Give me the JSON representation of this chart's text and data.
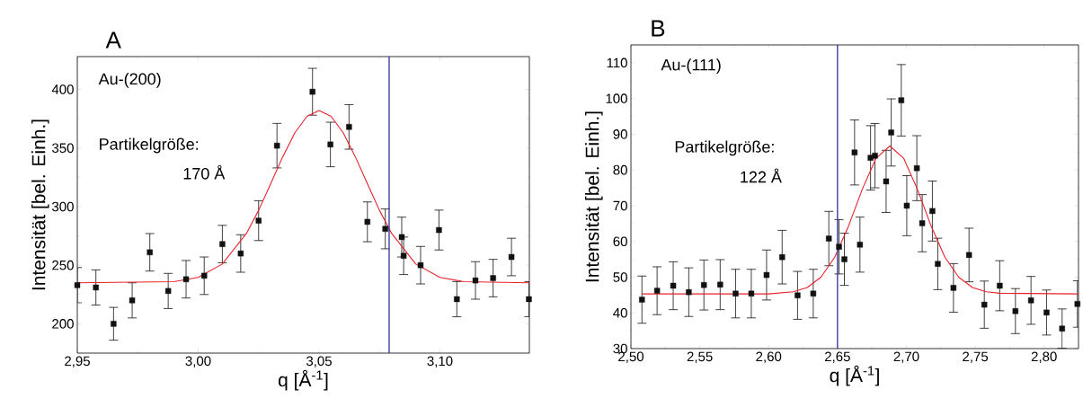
{
  "chart_data": [
    {
      "type": "scatter",
      "title": "A",
      "xlabel": "q [Å$^{-1}$]",
      "ylabel": "Intensität [bel. Einh.]",
      "annotations": [
        "Au-(200)",
        "Partikelgröße:",
        "170 Å"
      ],
      "xlim": [
        2.95,
        3.137
      ],
      "ylim": [
        175,
        428
      ],
      "xticks": [
        {
          "value": 2.95,
          "label": "2,95"
        },
        {
          "value": 3.0,
          "label": "3,00"
        },
        {
          "value": 3.05,
          "label": "3,05"
        },
        {
          "value": 3.1,
          "label": "3,10"
        }
      ],
      "yticks": [
        200,
        250,
        300,
        350,
        400
      ],
      "ref_lines": [
        {
          "axis": "x",
          "value": 3.079,
          "color": "#2b2f9a"
        }
      ],
      "series": [
        {
          "marker": "square",
          "color": "#111111",
          "x": [
            2.95,
            2.9577,
            2.965,
            2.9727,
            2.98,
            2.9876,
            2.995,
            3.0025,
            3.01,
            3.0176,
            3.025,
            3.0326,
            3.0473,
            3.0547,
            3.0624,
            3.07,
            3.0774,
            3.0842,
            3.085,
            3.092,
            3.0996,
            3.107,
            3.1147,
            3.122,
            3.1296,
            3.1368
          ],
          "values": [
            233,
            231,
            200,
            220,
            261,
            228,
            238,
            241,
            268,
            260,
            288,
            352,
            398,
            353,
            368,
            287,
            281,
            274,
            258,
            250,
            280,
            221,
            237,
            239,
            257,
            221
          ],
          "errors": [
            15,
            15,
            14,
            15,
            16,
            15,
            16,
            16,
            16,
            16,
            17,
            19,
            20,
            19,
            19,
            17,
            17,
            17,
            16,
            16,
            17,
            15,
            16,
            16,
            16,
            15
          ]
        },
        {
          "type": "line",
          "marker": "none",
          "color": "#e8202a",
          "x": [
            2.95,
            2.99,
            3.0,
            3.01,
            3.02,
            3.025,
            3.03,
            3.035,
            3.04,
            3.045,
            3.05,
            3.055,
            3.06,
            3.065,
            3.07,
            3.075,
            3.08,
            3.09,
            3.1,
            3.11,
            3.137
          ],
          "values": [
            235,
            236,
            239.6,
            251,
            277.2,
            296.8,
            319.5,
            342.6,
            363,
            377,
            382,
            377,
            363,
            342.6,
            319.5,
            296.8,
            277.2,
            251,
            239.6,
            236,
            235
          ]
        }
      ]
    },
    {
      "type": "scatter",
      "title": "B",
      "xlabel": "q [Å$^{-1}$]",
      "ylabel": "Intensität [bel. Einh.]",
      "annotations": [
        "Au-(111)",
        "Partikelgröße:",
        "122 Å"
      ],
      "xlim": [
        2.5,
        2.825
      ],
      "ylim": [
        30,
        115
      ],
      "xticks": [
        {
          "value": 2.5,
          "label": "2,50"
        },
        {
          "value": 2.55,
          "label": "2,55"
        },
        {
          "value": 2.6,
          "label": "2,60"
        },
        {
          "value": 2.65,
          "label": "2,65"
        },
        {
          "value": 2.7,
          "label": "2,70"
        },
        {
          "value": 2.75,
          "label": "2,75"
        },
        {
          "value": 2.8,
          "label": "2,80"
        }
      ],
      "yticks": [
        30,
        40,
        50,
        60,
        70,
        80,
        90,
        100,
        110
      ],
      "ref_lines": [
        {
          "axis": "x",
          "value": 2.65,
          "color": "#2b2f9a"
        }
      ],
      "series": [
        {
          "marker": "square",
          "color": "#111111",
          "x": [
            2.508,
            2.519,
            2.5307,
            2.542,
            2.553,
            2.5648,
            2.576,
            2.5874,
            2.5985,
            2.6098,
            2.621,
            2.6324,
            2.6437,
            2.6511,
            2.655,
            2.6624,
            2.6663,
            2.674,
            2.6772,
            2.6853,
            2.689,
            2.6963,
            2.7003,
            2.7076,
            2.7115,
            2.7189,
            2.7228,
            2.7342,
            2.7455,
            2.7566,
            2.7678,
            2.7792,
            2.7905,
            2.8018,
            2.8131,
            2.8242
          ],
          "values": [
            43.7,
            46.2,
            47.6,
            45.8,
            47.8,
            47.9,
            45.4,
            45.4,
            50.6,
            55.6,
            44.9,
            45.4,
            60.8,
            58.5,
            55,
            84.9,
            59.1,
            83.4,
            84,
            76.8,
            90.5,
            99.5,
            70,
            80.5,
            65.1,
            68.5,
            53.7,
            47,
            56.2,
            42.3,
            47.6,
            40.5,
            43.5,
            40.1,
            35.6,
            42.5
          ],
          "errors": [
            6.6,
            6.7,
            6.7,
            6.8,
            7,
            7,
            6.8,
            6.8,
            7,
            7.5,
            6.7,
            6.8,
            7.6,
            7.6,
            7.3,
            9.1,
            7.7,
            9,
            9,
            8.7,
            9.4,
            10,
            8.4,
            9.1,
            8,
            8.4,
            7.2,
            6.8,
            7.5,
            6.6,
            7,
            6.3,
            6.7,
            6.3,
            5.5,
            6.5
          ]
        },
        {
          "type": "line",
          "marker": "none",
          "color": "#e8202a",
          "x": [
            2.508,
            2.6,
            2.618,
            2.628,
            2.638,
            2.648,
            2.658,
            2.668,
            2.678,
            2.688,
            2.698,
            2.708,
            2.718,
            2.728,
            2.738,
            2.748,
            2.758,
            2.768,
            2.825
          ],
          "values": [
            45.3,
            45.3,
            45.9,
            47.1,
            50.0,
            55.6,
            64.3,
            74.6,
            83.3,
            86.7,
            83.3,
            74.6,
            64.3,
            55.6,
            50.0,
            47.1,
            45.9,
            45.5,
            45.3
          ]
        }
      ]
    }
  ]
}
